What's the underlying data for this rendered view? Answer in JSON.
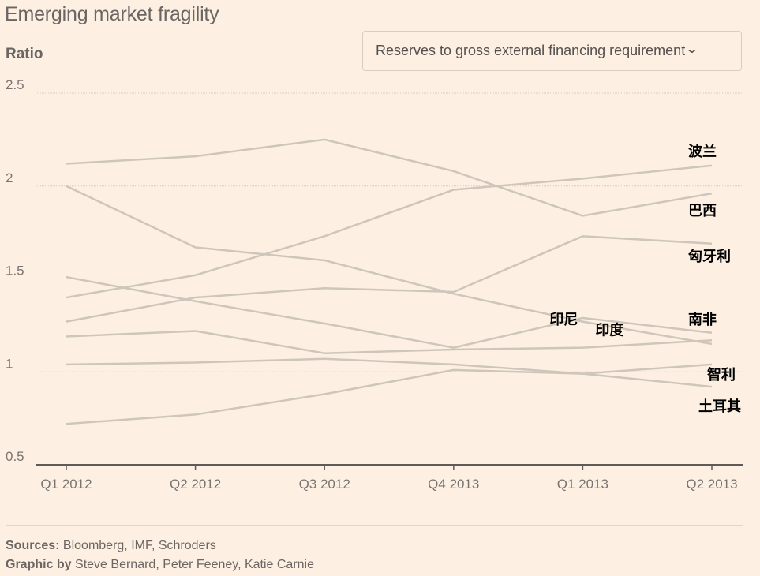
{
  "header": {
    "title": "Emerging market fragility",
    "y_axis_label": "Ratio"
  },
  "dropdown": {
    "selected": "Reserves to gross external financing requirement",
    "icon": "chevron-down-icon"
  },
  "footer": {
    "sources_label": "Sources:",
    "sources_text": "Bloomberg, IMF, Schroders",
    "graphic_label": "Graphic by",
    "graphic_text": "Steve Bernard, Peter Feeney, Katie Carnie"
  },
  "colors": {
    "background": "#fdf0e2",
    "line": "#cfc6bb",
    "grid": "#d8ccc4",
    "axis": "#5e5a57",
    "label": "#000000"
  },
  "chart_data": {
    "type": "line",
    "title": "Emerging market fragility",
    "xlabel": "",
    "ylabel": "Ratio",
    "ylim": [
      0.5,
      2.5
    ],
    "yticks": [
      0.5,
      1,
      1.5,
      2,
      2.5
    ],
    "ytick_labels": [
      "0.5",
      "1",
      "1.5",
      "2",
      "2.5"
    ],
    "grid": true,
    "categories": [
      "Q1 2012",
      "Q2 2012",
      "Q3 2012",
      "Q4 2013",
      "Q1 2013",
      "Q2 2013"
    ],
    "series": [
      {
        "name": "巴西",
        "values": [
          2.12,
          2.16,
          2.25,
          2.08,
          1.84,
          1.96
        ],
        "label_at": "end"
      },
      {
        "name": "南非",
        "values": [
          2.0,
          1.67,
          1.6,
          1.42,
          1.27,
          1.15
        ],
        "label_at": "end"
      },
      {
        "name": "波兰",
        "values": [
          1.4,
          1.52,
          1.73,
          1.98,
          2.04,
          2.11
        ],
        "label_at": "end"
      },
      {
        "name": "印尼",
        "values": [
          1.51,
          1.38,
          1.26,
          1.13,
          1.29,
          1.21
        ],
        "label_at": "Q1 2013"
      },
      {
        "name": "匈牙利",
        "values": [
          1.27,
          1.4,
          1.45,
          1.43,
          1.73,
          1.69
        ],
        "label_at": "end"
      },
      {
        "name": "印度",
        "values": [
          1.19,
          1.22,
          1.1,
          1.12,
          1.13,
          1.17
        ],
        "label_at": "Q1 2013"
      },
      {
        "name": "土耳其",
        "values": [
          1.04,
          1.05,
          1.07,
          1.04,
          0.99,
          0.92
        ],
        "label_at": "end"
      },
      {
        "name": "智利",
        "values": [
          0.72,
          0.77,
          0.88,
          1.01,
          0.99,
          1.04
        ],
        "label_at": "end"
      }
    ]
  }
}
